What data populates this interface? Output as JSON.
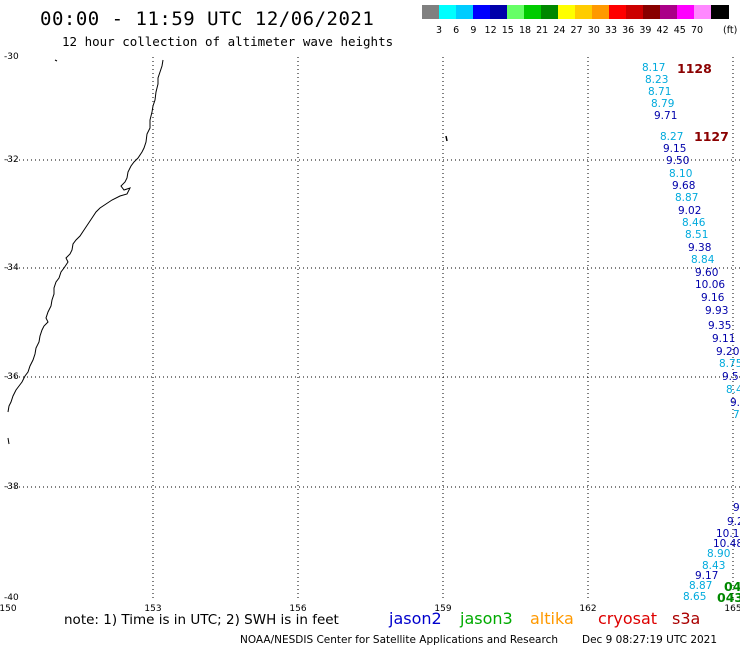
{
  "header": {
    "title": "00:00 - 11:59 UTC 12/06/2021",
    "subtitle": "12 hour collection of altimeter wave heights"
  },
  "legend": {
    "colors": [
      "#808080",
      "#00ffff",
      "#00ccff",
      "#0000ff",
      "#0000aa",
      "#66ff66",
      "#00cc00",
      "#008800",
      "#ffff00",
      "#ffcc00",
      "#ff9900",
      "#ff0000",
      "#cc0000",
      "#880000",
      "#aa0088",
      "#ff00ff",
      "#ff88ff",
      "#000000"
    ],
    "labels": [
      "3",
      "6",
      "9",
      "12",
      "15",
      "18",
      "21",
      "24",
      "27",
      "30",
      "33",
      "36",
      "39",
      "42",
      "45",
      "70"
    ],
    "unit": "(ft)"
  },
  "axes": {
    "lat_labels": [
      "-30",
      "-32",
      "-34",
      "-36",
      "-38",
      "-40"
    ],
    "lon_labels": [
      "150",
      "153",
      "156",
      "159",
      "162",
      "165"
    ]
  },
  "tracks": [
    {
      "id": "1128",
      "color": "#8b0000"
    },
    {
      "id": "1127",
      "color": "#8b0000"
    },
    {
      "id": "04",
      "color": "#008800"
    },
    {
      "id": "043",
      "color": "#008800"
    }
  ],
  "wave_heights": [
    {
      "text": "8.17",
      "color": "#00aadd"
    },
    {
      "text": "8.23",
      "color": "#00aadd"
    },
    {
      "text": "8.71",
      "color": "#00aadd"
    },
    {
      "text": "8.79",
      "color": "#00aadd"
    },
    {
      "text": "9.71",
      "color": "#0000aa"
    },
    {
      "text": "8.27",
      "color": "#00aadd"
    },
    {
      "text": "9.15",
      "color": "#0000aa"
    },
    {
      "text": "9.50",
      "color": "#0000aa"
    },
    {
      "text": "8.10",
      "color": "#00aadd"
    },
    {
      "text": "9.68",
      "color": "#0000aa"
    },
    {
      "text": "8.87",
      "color": "#00aadd"
    },
    {
      "text": "9.02",
      "color": "#0000aa"
    },
    {
      "text": "8.46",
      "color": "#00aadd"
    },
    {
      "text": "8.51",
      "color": "#00aadd"
    },
    {
      "text": "9.38",
      "color": "#0000aa"
    },
    {
      "text": "8.84",
      "color": "#00aadd"
    },
    {
      "text": "9.60",
      "color": "#0000aa"
    },
    {
      "text": "10.06",
      "color": "#0000aa"
    },
    {
      "text": "9.16",
      "color": "#0000aa"
    },
    {
      "text": "9.93",
      "color": "#0000aa"
    },
    {
      "text": "9.35",
      "color": "#0000aa"
    },
    {
      "text": "9.11",
      "color": "#0000aa"
    },
    {
      "text": "9.20",
      "color": "#0000aa"
    },
    {
      "text": "8.75",
      "color": "#00aadd"
    },
    {
      "text": "9.5",
      "color": "#0000aa"
    },
    {
      "text": "8.4",
      "color": "#00aadd"
    },
    {
      "text": "9.",
      "color": "#0000aa"
    },
    {
      "text": "7",
      "color": "#00aadd"
    },
    {
      "text": "9",
      "color": "#0000aa"
    },
    {
      "text": "9.2",
      "color": "#0000aa"
    },
    {
      "text": "10.1",
      "color": "#0000aa"
    },
    {
      "text": "10.48",
      "color": "#0000aa"
    },
    {
      "text": "8.90",
      "color": "#00aadd"
    },
    {
      "text": "8.43",
      "color": "#00aadd"
    },
    {
      "text": "9.17",
      "color": "#0000aa"
    },
    {
      "text": "8.87",
      "color": "#00aadd"
    },
    {
      "text": "8.65",
      "color": "#00aadd"
    }
  ],
  "footer": {
    "note": "note: 1) Time is in UTC; 2) SWH is in feet",
    "satellites": [
      {
        "name": "jason2",
        "color": "#0000cc"
      },
      {
        "name": "jason3",
        "color": "#00aa00"
      },
      {
        "name": "altika",
        "color": "#ff9900"
      },
      {
        "name": "cryosat",
        "color": "#dd0000"
      },
      {
        "name": "s3a",
        "color": "#aa0000"
      }
    ],
    "credit": "NOAA/NESDIS Center for Satellite Applications and Research",
    "timestamp": "Dec  9 08:27:19 UTC 2021"
  }
}
